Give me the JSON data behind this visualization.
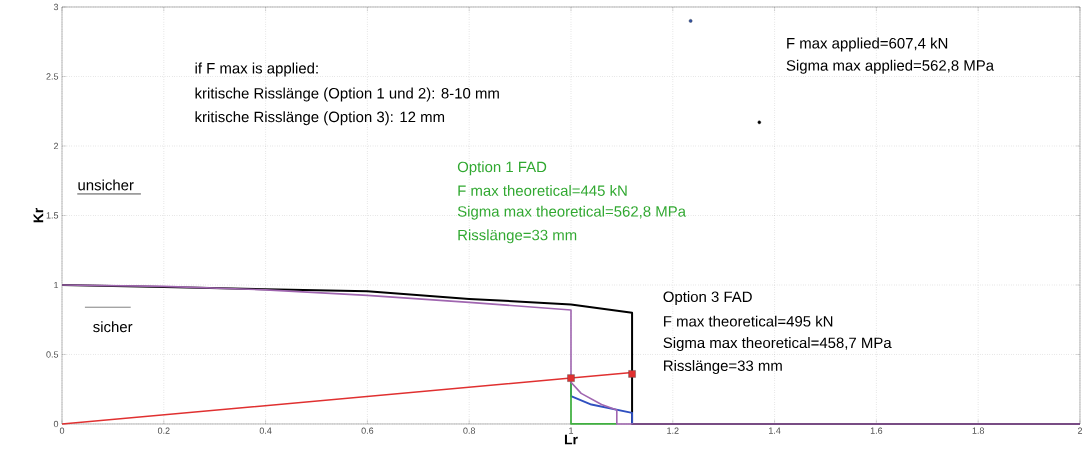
{
  "chart_data": {
    "type": "line",
    "xlabel": "Lr",
    "ylabel": "Kr",
    "xlim": [
      0,
      2
    ],
    "ylim": [
      0,
      3
    ],
    "xticks": [
      0,
      0.2,
      0.4,
      0.6,
      0.8,
      1,
      1.2,
      1.4,
      1.6,
      1.8,
      2
    ],
    "yticks": [
      0,
      0.5,
      1,
      1.5,
      2,
      2.5,
      3
    ],
    "grid": true,
    "series": [
      {
        "color": "#000000",
        "x": [
          0,
          0.2,
          0.4,
          0.6,
          0.8,
          1,
          1.12,
          1.12,
          2
        ],
        "values": [
          1,
          0.985,
          0.97,
          0.955,
          0.9,
          0.86,
          0.8,
          0,
          0
        ]
      },
      {
        "color": "#3050c0",
        "x": [
          1,
          1,
          1.04,
          1.12,
          1.12
        ],
        "values": [
          0.3,
          0.2,
          0.14,
          0.08,
          0
        ]
      },
      {
        "color": "#40b040",
        "x": [
          1,
          1,
          1.09
        ],
        "values": [
          0.3,
          0,
          0
        ]
      },
      {
        "color": "#a066b0",
        "x": [
          0,
          0.2,
          0.4,
          0.6,
          0.8,
          1,
          1,
          1.02,
          1.06,
          1.09,
          1.09,
          2
        ],
        "values": [
          1,
          0.99,
          0.965,
          0.925,
          0.875,
          0.82,
          0.3,
          0.22,
          0.14,
          0.1,
          0,
          0
        ]
      },
      {
        "color": "#e03030",
        "x": [
          0,
          1,
          1.12
        ],
        "values": [
          0,
          0.33,
          0.37
        ]
      },
      {
        "type": "scatter",
        "marker": "square",
        "color": "#e03030",
        "x": [
          1,
          1.12
        ],
        "values": [
          0.33,
          0.36
        ]
      },
      {
        "type": "scatter",
        "marker": "circle",
        "color": "#3050a0",
        "x": [
          1.235
        ],
        "values": [
          2.9
        ]
      },
      {
        "type": "scatter",
        "marker": "circle",
        "color": "#000000",
        "x": [
          1.37
        ],
        "values": [
          2.17
        ]
      }
    ],
    "annotations": [
      "if F max is applied:",
      "kritische Risslänge (Option 1 und 2): 8-10 mm",
      "kritische Risslänge (Option 3): 12 mm",
      "unsicher",
      "sicher",
      "Option 1 FAD",
      "F max theoretical=445 kN",
      "Sigma max theoretical=562,8 MPa",
      "Risslänge=33 mm",
      "Option 3 FAD",
      "F max theoretical=495 kN",
      "Sigma max theoretical=458,7 MPa",
      "Risslänge=33 mm",
      "F max applied=607,4 kN",
      "Sigma max applied=562,8 MPa"
    ]
  }
}
